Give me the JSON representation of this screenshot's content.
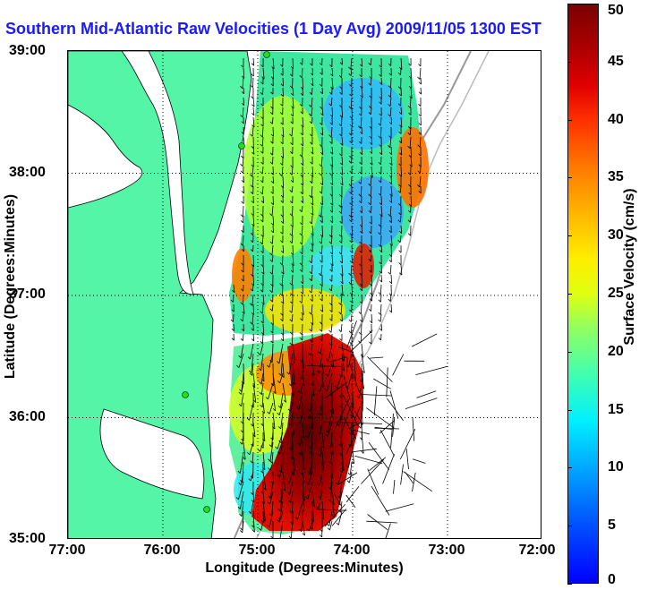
{
  "title": "Southern Mid-Atlantic Raw Velocities (1 Day Avg) 2009/11/05 1300 EST",
  "chart_data": {
    "type": "heatmap",
    "xlabel": "Longitude (Degrees:Minutes)",
    "ylabel": "Latitude (Degrees:Minutes)",
    "x_ticks": [
      "77:00",
      "76:00",
      "75:00",
      "74:00",
      "73:00",
      "72:00"
    ],
    "y_ticks": [
      "39:00",
      "38:00",
      "37:00",
      "36:00",
      "35:00"
    ],
    "xlim": [
      -77,
      -72
    ],
    "ylim": [
      35,
      39
    ],
    "grid": true,
    "colorbar": {
      "label": "Surface Velocity (cm/s)",
      "ticks": [
        "0",
        "5",
        "10",
        "15",
        "20",
        "25",
        "30",
        "35",
        "40",
        "45",
        "50"
      ],
      "range": [
        0,
        50
      ]
    },
    "colors": {
      "land": "#55f5a8",
      "title": "#1a1aff"
    }
  }
}
